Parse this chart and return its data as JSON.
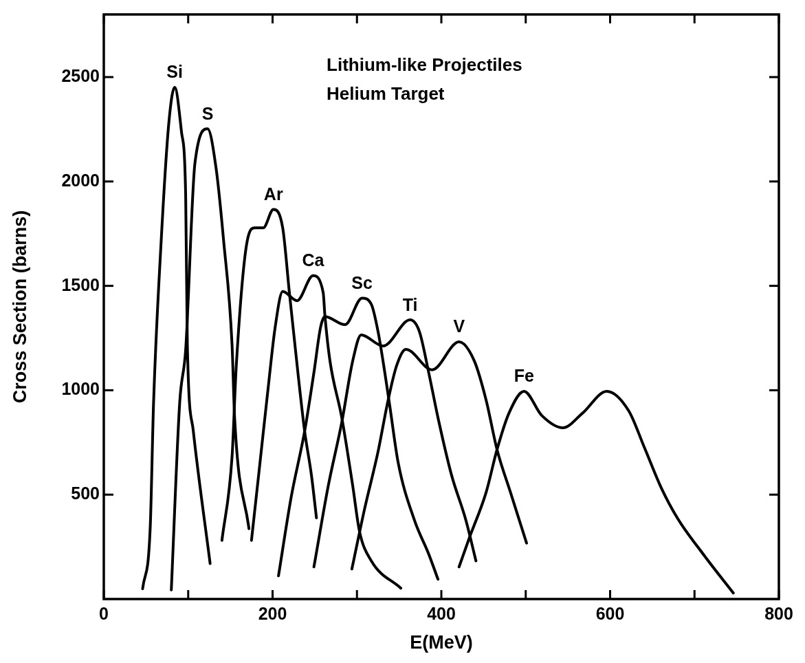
{
  "chart_data": {
    "type": "line",
    "title": "Lithium-like Projectiles",
    "subtitle": "Helium Target",
    "xlabel": "E(MeV)",
    "ylabel": "Cross Section (barns)",
    "xlim": [
      0,
      800
    ],
    "ylim": [
      0,
      2800
    ],
    "xticks": [
      0,
      {
        "value": 100,
        "label": null
      },
      200,
      {
        "value": 300,
        "label": null
      },
      400,
      {
        "value": 500,
        "label": null
      },
      600,
      {
        "value": 700,
        "label": null
      },
      800
    ],
    "yticks": [
      500,
      1000,
      1500,
      2000,
      2500
    ],
    "marker": "none",
    "line_style": "solid",
    "legend": false,
    "grid": false,
    "series": [
      {
        "name": "Si",
        "color": "#000000",
        "x": [
          46,
          55,
          59,
          68,
          77,
          84,
          92,
          97,
          99,
          106,
          126
        ],
        "values": [
          49,
          343,
          944,
          1716,
          2278,
          2451,
          2239,
          1938,
          1216,
          807,
          170
        ]
      },
      {
        "name": "S",
        "color": "#000000",
        "x": [
          80,
          90,
          97,
          108,
          123,
          133,
          142,
          152,
          155,
          172
        ],
        "values": [
          44,
          944,
          1193,
          2088,
          2252,
          2065,
          1716,
          1216,
          869,
          337
        ]
      },
      {
        "name": "Ar",
        "color": "#000000",
        "x": [
          140,
          152,
          157,
          170,
          179,
          189,
          201,
          212,
          220,
          230,
          238,
          246,
          252
        ],
        "values": [
          281,
          683,
          1118,
          1716,
          1778,
          1778,
          1866,
          1778,
          1464,
          1085,
          804,
          595,
          389
        ]
      },
      {
        "name": "Ca",
        "color": "#000000",
        "x": [
          175,
          185,
          195,
          203,
          212,
          229,
          248,
          260,
          262,
          268,
          282,
          295,
          303,
          317,
          352
        ],
        "values": [
          281,
          650,
          1020,
          1300,
          1473,
          1429,
          1549,
          1467,
          1359,
          1141,
          869,
          542,
          324,
          183,
          52
        ]
      },
      {
        "name": "Sc",
        "color": "#000000",
        "x": [
          207,
          222,
          238,
          249,
          257,
          262,
          286,
          306,
          317,
          325,
          333,
          339,
          349,
          368,
          385,
          396
        ],
        "values": [
          111,
          487,
          804,
          1085,
          1304,
          1353,
          1314,
          1441,
          1412,
          1281,
          1085,
          922,
          650,
          379,
          216,
          95
        ]
      },
      {
        "name": "Ti",
        "color": "#000000",
        "x": [
          249,
          266,
          282,
          295,
          305,
          331,
          363,
          374,
          385,
          396,
          412,
          429,
          441
        ],
        "values": [
          154,
          542,
          846,
          1141,
          1265,
          1212,
          1337,
          1281,
          1085,
          869,
          595,
          379,
          183
        ]
      },
      {
        "name": "V",
        "color": "#000000",
        "x": [
          294,
          309,
          325,
          337,
          347,
          358,
          389,
          421,
          439,
          453,
          466,
          482,
          501
        ],
        "values": [
          144,
          431,
          706,
          954,
          1118,
          1196,
          1098,
          1232,
          1141,
          954,
          716,
          510,
          268
        ]
      },
      {
        "name": "Fe",
        "color": "#000000",
        "x": [
          421,
          433,
          453,
          466,
          480,
          498,
          519,
          544,
          567,
          596,
          622,
          641,
          661,
          680,
          712,
          746
        ],
        "values": [
          154,
          291,
          510,
          716,
          889,
          995,
          879,
          820,
          889,
          995,
          902,
          722,
          529,
          386,
          206,
          29
        ]
      }
    ]
  }
}
